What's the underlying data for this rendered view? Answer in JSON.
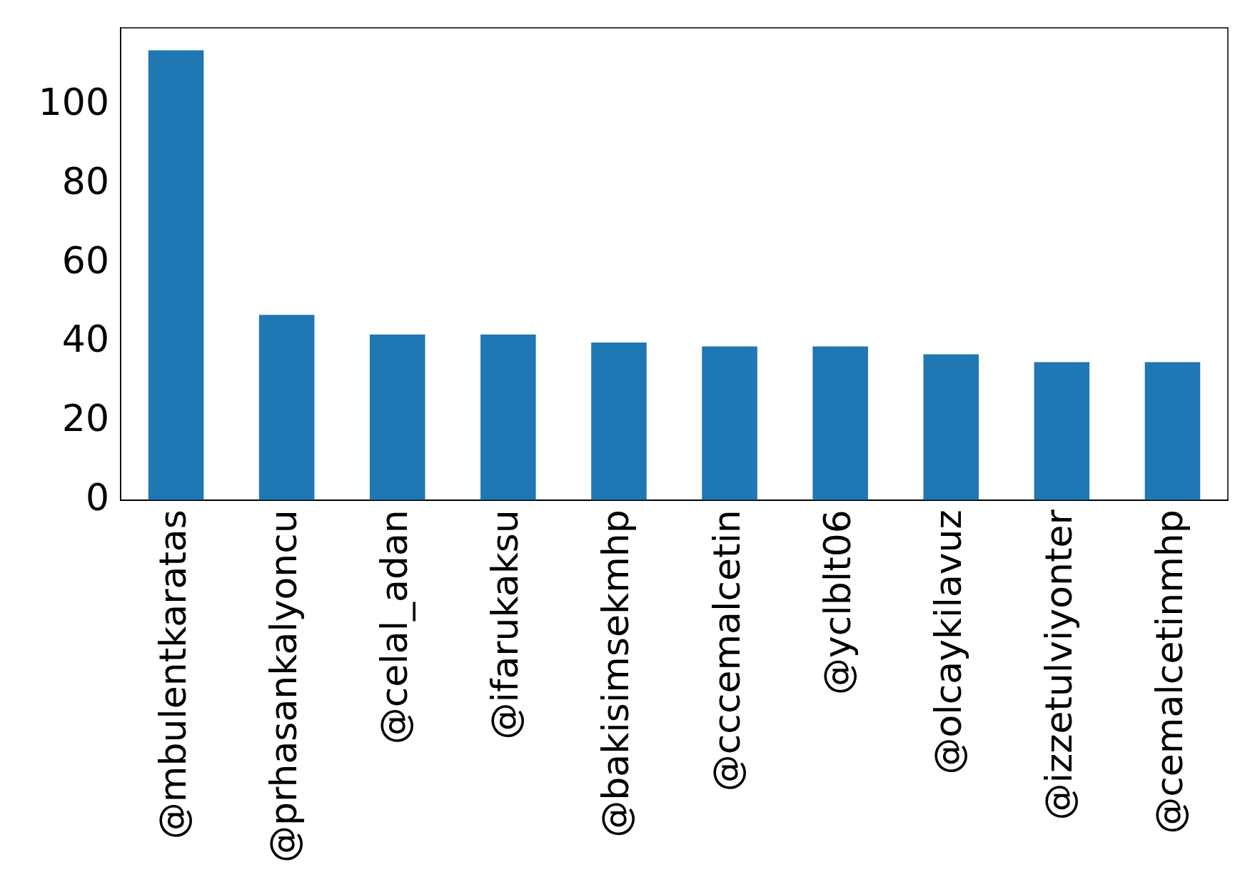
{
  "chart_data": {
    "type": "bar",
    "categories": [
      "@mbulentkaratas",
      "@prhasankalyoncu",
      "@celal_adan",
      "@ifarukaksu",
      "@bakisimsekmhp",
      "@cccemalcetin",
      "@yclblt06",
      "@olcaykilavuz",
      "@izzetulviyonter",
      "@cemalcetinmhp"
    ],
    "values": [
      114,
      47,
      42,
      42,
      40,
      39,
      39,
      37,
      35,
      35
    ],
    "color": "#1f77b4",
    "ylim": [
      0,
      119.7
    ],
    "yticks": [
      0,
      20,
      40,
      60,
      80,
      100
    ],
    "grid": false,
    "legend": false
  }
}
